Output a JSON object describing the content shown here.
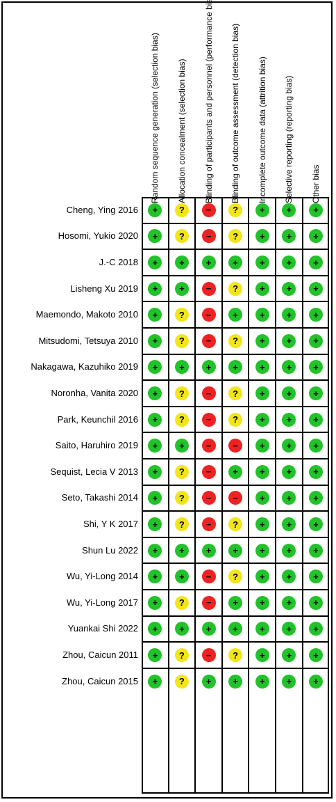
{
  "domains": [
    "Random sequence generation (selection bias)",
    "Allocation concealment (selection bias)",
    "Blinding of participants and personnel (performance bias)",
    "Blinding of outcome assessment (detection bias)",
    "Incomplete outcome data (attrition bias)",
    "Selective reporting (reporting bias)",
    "Other bias"
  ],
  "studies": [
    {
      "name": "Cheng, Ying 2016",
      "ratings": [
        "low",
        "unclear",
        "high",
        "unclear",
        "low",
        "low",
        "low"
      ]
    },
    {
      "name": "Hosomi, Yukio 2020",
      "ratings": [
        "low",
        "unclear",
        "high",
        "unclear",
        "low",
        "low",
        "low"
      ]
    },
    {
      "name": "J.-C 2018",
      "ratings": [
        "low",
        "low",
        "low",
        "low",
        "low",
        "low",
        "low"
      ]
    },
    {
      "name": "Lisheng Xu 2019",
      "ratings": [
        "low",
        "low",
        "high",
        "unclear",
        "low",
        "low",
        "low"
      ]
    },
    {
      "name": "Maemondo, Makoto 2010",
      "ratings": [
        "low",
        "unclear",
        "high",
        "low",
        "low",
        "low",
        "low"
      ]
    },
    {
      "name": "Mitsudomi, Tetsuya 2010",
      "ratings": [
        "low",
        "unclear",
        "high",
        "unclear",
        "low",
        "low",
        "low"
      ]
    },
    {
      "name": "Nakagawa, Kazuhiko 2019",
      "ratings": [
        "low",
        "low",
        "low",
        "low",
        "low",
        "low",
        "low"
      ]
    },
    {
      "name": "Noronha, Vanita 2020",
      "ratings": [
        "low",
        "unclear",
        "high",
        "unclear",
        "low",
        "low",
        "low"
      ]
    },
    {
      "name": "Park, Keunchil 2016",
      "ratings": [
        "low",
        "unclear",
        "high",
        "unclear",
        "low",
        "low",
        "low"
      ]
    },
    {
      "name": "Saito, Haruhiro 2019",
      "ratings": [
        "low",
        "low",
        "high",
        "high",
        "low",
        "low",
        "low"
      ]
    },
    {
      "name": "Sequist, Lecia V 2013",
      "ratings": [
        "low",
        "unclear",
        "high",
        "low",
        "low",
        "low",
        "low"
      ]
    },
    {
      "name": "Seto, Takashi 2014",
      "ratings": [
        "low",
        "unclear",
        "high",
        "high",
        "low",
        "low",
        "low"
      ]
    },
    {
      "name": "Shi, Y K 2017",
      "ratings": [
        "low",
        "unclear",
        "high",
        "unclear",
        "low",
        "low",
        "low"
      ]
    },
    {
      "name": "Shun Lu 2022",
      "ratings": [
        "low",
        "low",
        "low",
        "low",
        "low",
        "low",
        "low"
      ]
    },
    {
      "name": "Wu, Yi-Long 2014",
      "ratings": [
        "low",
        "low",
        "high",
        "unclear",
        "low",
        "low",
        "low"
      ]
    },
    {
      "name": "Wu, Yi-Long 2017",
      "ratings": [
        "low",
        "unclear",
        "high",
        "low",
        "low",
        "low",
        "low"
      ]
    },
    {
      "name": "Yuankai Shi 2022",
      "ratings": [
        "low",
        "low",
        "low",
        "low",
        "low",
        "low",
        "low"
      ]
    },
    {
      "name": "Zhou, Caicun 2011",
      "ratings": [
        "low",
        "unclear",
        "high",
        "unclear",
        "low",
        "low",
        "low"
      ]
    },
    {
      "name": "Zhou, Caicun 2015",
      "ratings": [
        "low",
        "unclear",
        "low",
        "low",
        "low",
        "low",
        "low"
      ]
    }
  ],
  "rating_styles": {
    "low": {
      "symbol": "+",
      "color": "#22c22a",
      "icon": "plus-icon"
    },
    "unclear": {
      "symbol": "?",
      "color": "#f2e51a",
      "icon": "question-icon"
    },
    "high": {
      "symbol": "−",
      "color": "#ee2222",
      "icon": "minus-icon"
    }
  }
}
